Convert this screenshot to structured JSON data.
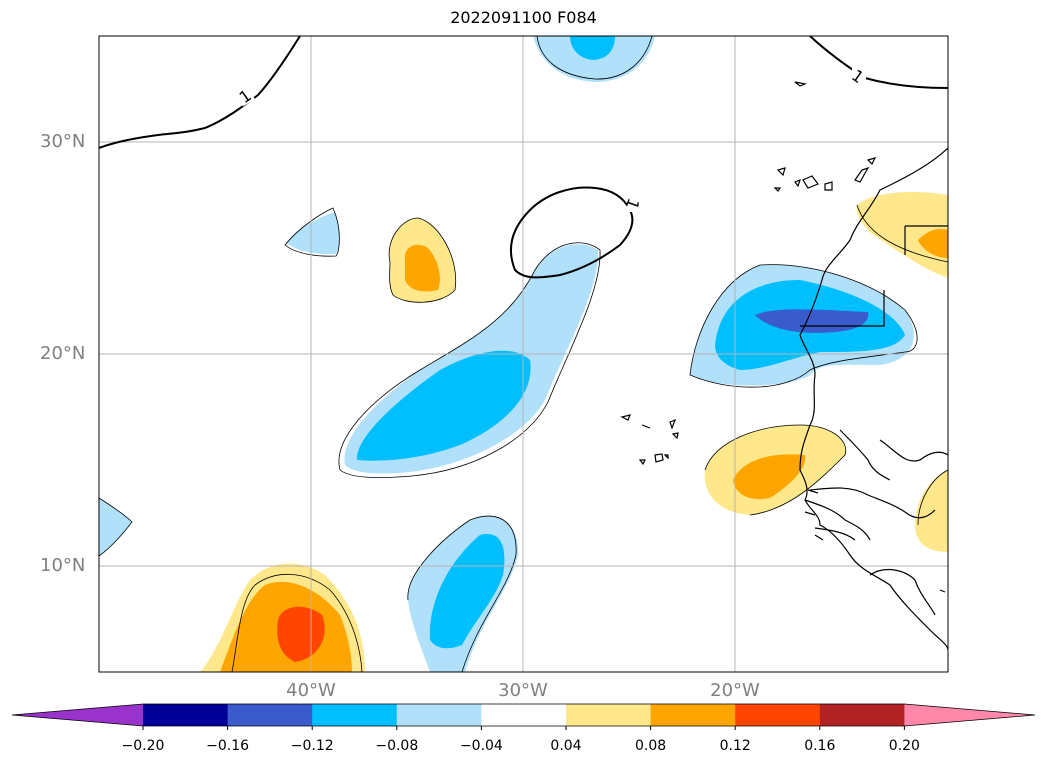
{
  "title": "2022091100 F084",
  "lat_labels": [
    "30°N",
    "20°N",
    "10°N"
  ],
  "lon_labels": [
    "40°W",
    "30°W",
    "20°W"
  ],
  "contour_labels": [
    "1",
    "1",
    "1"
  ],
  "colorbar": {
    "ticks": [
      "−0.20",
      "−0.16",
      "−0.12",
      "−0.08",
      "−0.04",
      "0.04",
      "0.08",
      "0.12",
      "0.16",
      "0.20"
    ],
    "colors": [
      "#9933cc",
      "#000099",
      "#3a5bcc",
      "#00bfff",
      "#b0e0fa",
      "#ffffff",
      "#ffe88c",
      "#ffa500",
      "#ff4500",
      "#b22222",
      "#ff88aa"
    ]
  }
}
